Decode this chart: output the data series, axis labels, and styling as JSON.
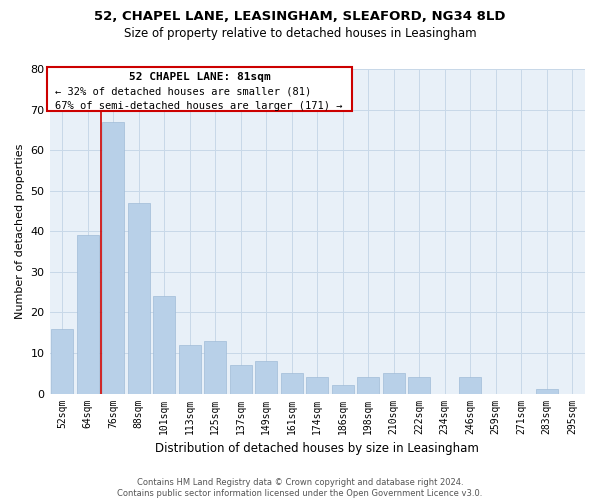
{
  "title1": "52, CHAPEL LANE, LEASINGHAM, SLEAFORD, NG34 8LD",
  "title2": "Size of property relative to detached houses in Leasingham",
  "xlabel": "Distribution of detached houses by size in Leasingham",
  "ylabel": "Number of detached properties",
  "bar_labels": [
    "52sqm",
    "64sqm",
    "76sqm",
    "88sqm",
    "101sqm",
    "113sqm",
    "125sqm",
    "137sqm",
    "149sqm",
    "161sqm",
    "174sqm",
    "186sqm",
    "198sqm",
    "210sqm",
    "222sqm",
    "234sqm",
    "246sqm",
    "259sqm",
    "271sqm",
    "283sqm",
    "295sqm"
  ],
  "bar_values": [
    16,
    39,
    67,
    47,
    24,
    12,
    13,
    7,
    8,
    5,
    4,
    2,
    4,
    5,
    4,
    0,
    4,
    0,
    0,
    1,
    0
  ],
  "bar_color": "#b8d0e8",
  "highlight_bar_index": 2,
  "highlight_color": "#cc0000",
  "ylim": [
    0,
    80
  ],
  "yticks": [
    0,
    10,
    20,
    30,
    40,
    50,
    60,
    70,
    80
  ],
  "annotation_title": "52 CHAPEL LANE: 81sqm",
  "annotation_line1": "← 32% of detached houses are smaller (81)",
  "annotation_line2": "67% of semi-detached houses are larger (171) →",
  "footer1": "Contains HM Land Registry data © Crown copyright and database right 2024.",
  "footer2": "Contains public sector information licensed under the Open Government Licence v3.0.",
  "bg_color": "#ffffff",
  "plot_bg_color": "#e8f0f8",
  "grid_color": "#c8d8e8",
  "annotation_box_color": "#ffffff",
  "annotation_box_edge": "#cc0000",
  "title1_fontsize": 9.5,
  "title2_fontsize": 8.5,
  "ylabel_fontsize": 8,
  "xlabel_fontsize": 8.5,
  "tick_fontsize": 7,
  "footer_fontsize": 6
}
